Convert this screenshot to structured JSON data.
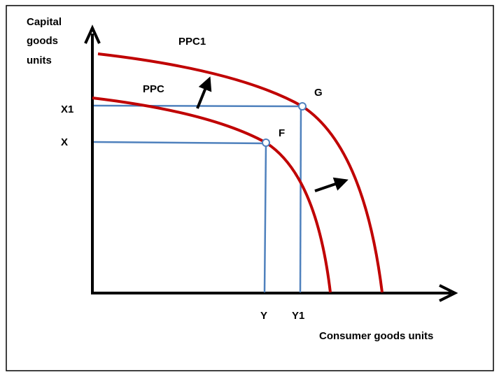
{
  "y_axis_label": [
    "Capital",
    "goods",
    "units"
  ],
  "x_axis_label": "Consumer goods units",
  "curves": [
    {
      "label": "PPC"
    },
    {
      "label": "PPC1"
    }
  ],
  "points": [
    {
      "label": "F"
    },
    {
      "label": "G"
    }
  ],
  "y_markers": [
    "X",
    "X1"
  ],
  "x_markers": [
    "Y",
    "Y1"
  ]
}
